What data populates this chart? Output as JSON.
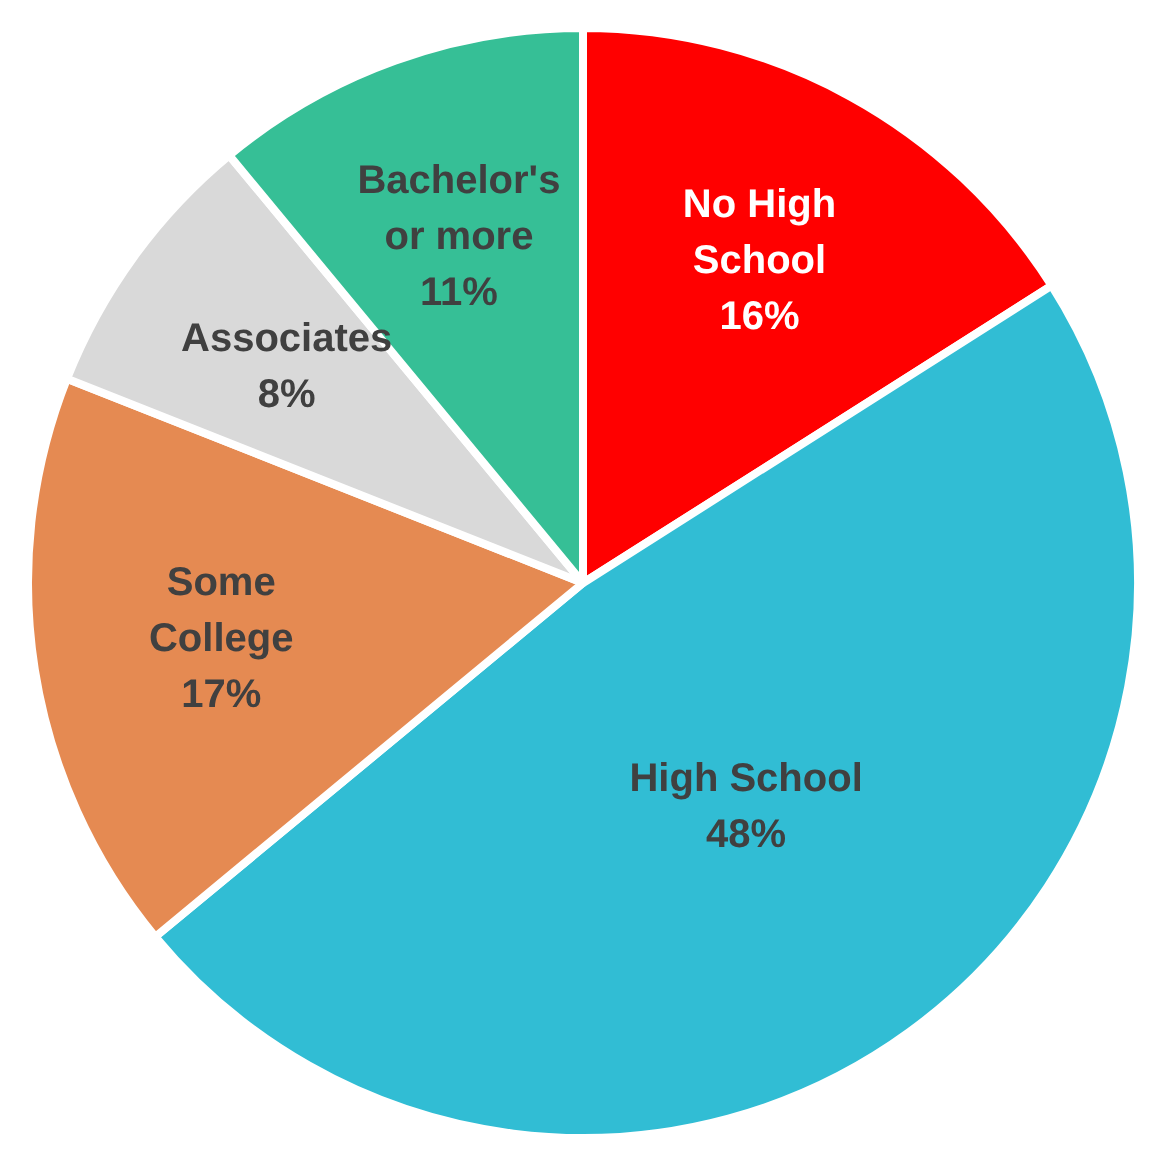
{
  "chart_data": {
    "type": "pie",
    "categories": [
      "No High School",
      "High School",
      "Some College",
      "Associates",
      "Bachelor's or more"
    ],
    "values": [
      16,
      48,
      17,
      8,
      11
    ],
    "colors": [
      "#ff0000",
      "#31bdd4",
      "#e58a52",
      "#d9d9d9",
      "#36bf96"
    ],
    "value_labels": [
      "16%",
      "48%",
      "17%",
      "8%",
      "11%"
    ],
    "legend": false
  }
}
